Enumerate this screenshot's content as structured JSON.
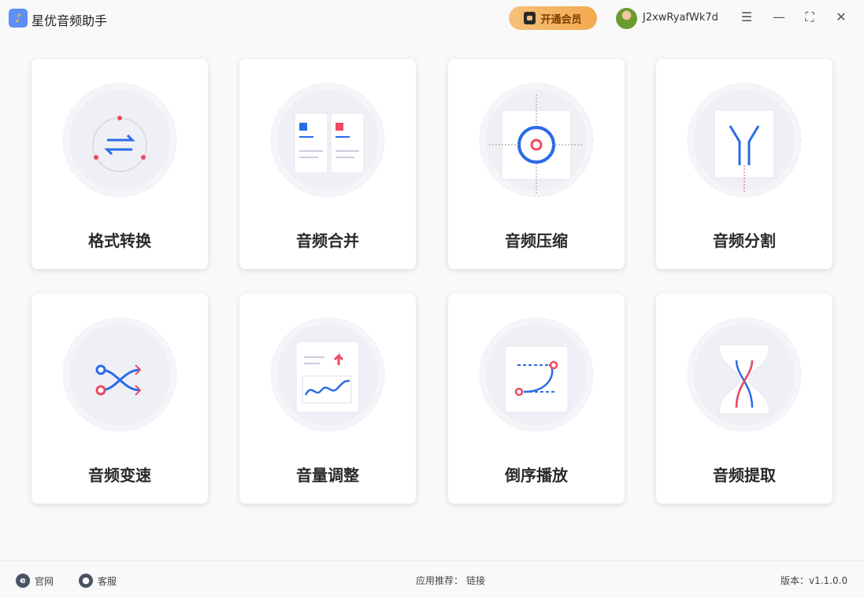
{
  "app": {
    "title": "星优音频助手",
    "vip_label": "开通会员",
    "username": "J2xwRyafWk7d"
  },
  "window_controls": [
    "settings-icon",
    "minimize-icon",
    "maximize-icon",
    "close-icon"
  ],
  "cards": [
    {
      "label": "格式转换",
      "icon": "format-convert-icon"
    },
    {
      "label": "音频合并",
      "icon": "audio-merge-icon"
    },
    {
      "label": "音频压缩",
      "icon": "audio-compress-icon"
    },
    {
      "label": "音频分割",
      "icon": "audio-split-icon"
    },
    {
      "label": "音频变速",
      "icon": "audio-speed-icon"
    },
    {
      "label": "音量调整",
      "icon": "volume-adjust-icon"
    },
    {
      "label": "倒序播放",
      "icon": "reverse-play-icon"
    },
    {
      "label": "音频提取",
      "icon": "audio-extract-icon"
    }
  ],
  "footer": {
    "website": "官网",
    "support": "客服",
    "recommend": "应用推荐：",
    "link": "链接",
    "version": "版本：v1.1.0.0"
  },
  "colors": {
    "accent_blue": "#2b6be6",
    "accent_red": "#ee4a62",
    "vip_gold": "#f3a94e"
  }
}
